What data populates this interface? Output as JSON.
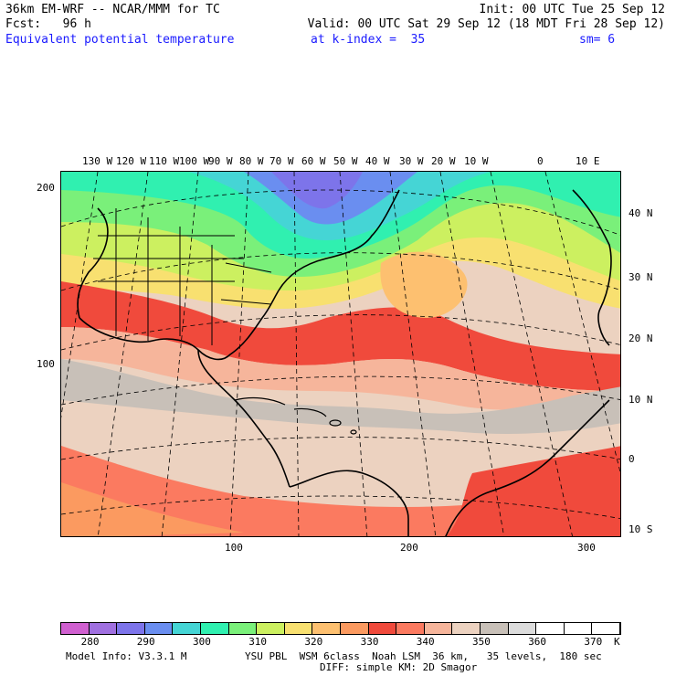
{
  "header": {
    "line1_left": "36km EM-WRF -- NCAR/MMM for TC",
    "line1_right": "Init: 00 UTC Tue 25 Sep 12",
    "line2_left": "Fcst:   96 h",
    "line2_right": "Valid: 00 UTC Sat 29 Sep 12 (18 MDT Fri 28 Sep 12)",
    "field": "Equivalent potential temperature",
    "level": "at k-index =  35",
    "smooth": "sm= 6"
  },
  "top_longitudes": [
    "130 W",
    "120 W",
    "110 W",
    "100 W",
    "90 W",
    "80 W",
    "70 W",
    "60 W",
    "50 W",
    "40 W",
    "30 W",
    "20 W",
    "10 W",
    "0",
    "10 E"
  ],
  "right_latitudes": [
    "40 N",
    "30 N",
    "20 N",
    "10 N",
    "0",
    "10 S"
  ],
  "left_grid": [
    "200",
    "100"
  ],
  "bottom_grid": [
    "100",
    "200",
    "300"
  ],
  "legend": {
    "colors": [
      "#d060d0",
      "#a070e0",
      "#7d74ea",
      "#6a8ef0",
      "#45d5d5",
      "#30f0b0",
      "#7af07a",
      "#ccf060",
      "#f8e070",
      "#fdc070",
      "#fb9a60",
      "#f04a3c",
      "#fb7a60",
      "#f6b59b",
      "#ecd2c0",
      "#c8c0b8",
      "#dcdcdc",
      "#ffffff",
      "#ffffff",
      "#ffffff"
    ],
    "labels": [
      "280",
      "290",
      "300",
      "310",
      "320",
      "330",
      "340",
      "350",
      "360",
      "370",
      "K"
    ]
  },
  "footer": {
    "model": "Model Info: V3.3.1 M",
    "physics": "YSU PBL  WSM 6class  Noah LSM  36 km,   35 levels,  180 sec",
    "diff": "DIFF: simple KM: 2D Smagor"
  }
}
